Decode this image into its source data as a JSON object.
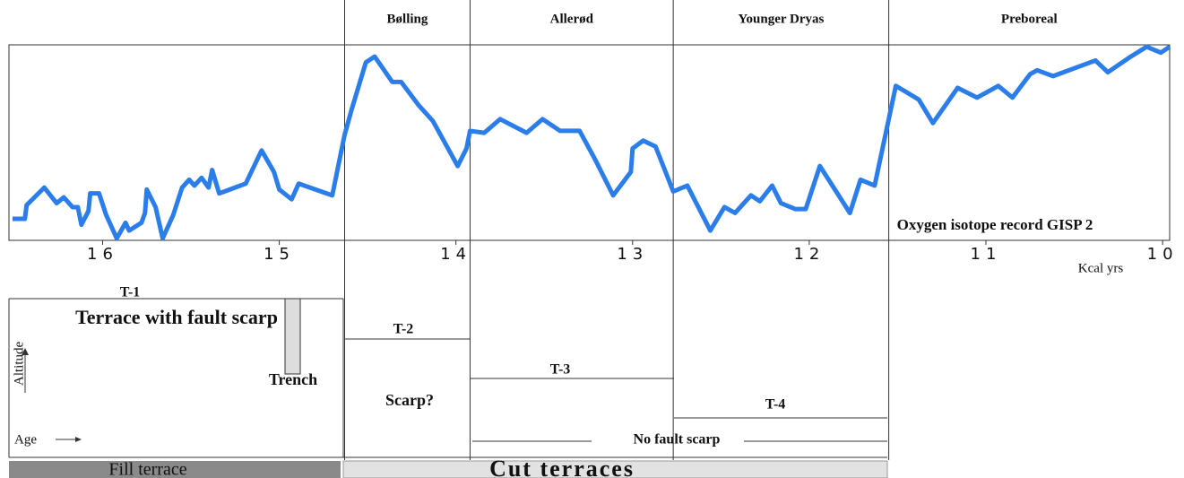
{
  "chart_data": {
    "type": "line",
    "annotation": "Oxygen isotope record GISP 2",
    "xlabel": "Kcal yrs",
    "xlim": [
      16.53,
      9.96
    ],
    "ylim": [
      0,
      100
    ],
    "xticks": [
      16,
      15,
      14,
      13,
      12,
      11,
      10
    ],
    "periods": [
      {
        "name": "Bølling",
        "start": 14.63
      },
      {
        "name": "Allerød",
        "start": 13.92
      },
      {
        "name": "Younger Dryas",
        "start": 12.77
      },
      {
        "name": "Preboreal",
        "start": 11.55
      }
    ],
    "x": [
      16.51,
      16.44,
      16.43,
      16.33,
      16.26,
      16.22,
      16.17,
      16.14,
      16.12,
      16.08,
      16.07,
      16.02,
      15.98,
      15.92,
      15.87,
      15.85,
      15.78,
      15.76,
      15.75,
      15.7,
      15.66,
      15.6,
      15.55,
      15.51,
      15.48,
      15.44,
      15.4,
      15.38,
      15.34,
      15.19,
      15.1,
      15.03,
      15.0,
      14.93,
      14.89,
      14.7,
      14.63,
      14.59,
      14.51,
      14.46,
      14.36,
      14.31,
      14.21,
      14.13,
      13.99,
      13.94,
      13.92,
      13.84,
      13.75,
      13.6,
      13.51,
      13.41,
      13.3,
      13.21,
      13.11,
      13.01,
      13.0,
      12.94,
      12.87,
      12.77,
      12.69,
      12.56,
      12.48,
      12.42,
      12.33,
      12.28,
      12.21,
      12.16,
      12.08,
      12.02,
      11.94,
      11.77,
      11.71,
      11.63,
      11.51,
      11.38,
      11.3,
      11.16,
      11.05,
      10.93,
      10.85,
      10.75,
      10.71,
      10.62,
      10.38,
      10.31,
      10.18,
      10.09,
      10.01,
      9.96
    ],
    "series": [
      {
        "color": "#2b7de9",
        "values": [
          11,
          11,
          18,
          27,
          19,
          22,
          17,
          17,
          8,
          15,
          24,
          24,
          13,
          1,
          9,
          5,
          9,
          14,
          26,
          17,
          1,
          13,
          27,
          31,
          28,
          32,
          27,
          36,
          24,
          29,
          46,
          35,
          26,
          21,
          29,
          23,
          54,
          67,
          91,
          94,
          81,
          81,
          69,
          61,
          38,
          47,
          56,
          55,
          62,
          55,
          62,
          56,
          56,
          41,
          23,
          35,
          47,
          51,
          48,
          25,
          28,
          5,
          17,
          14,
          23,
          20,
          28,
          19,
          16,
          16,
          38,
          14,
          31,
          28,
          79,
          72,
          60,
          78,
          73,
          79,
          73,
          85,
          87,
          84,
          92,
          86,
          94,
          99,
          96,
          99
        ]
      }
    ]
  },
  "diagram": {
    "t1": "T-1",
    "t1_text": "Terrace with fault scarp",
    "trench": "Trench",
    "altitude": "Altitude",
    "age": "Age",
    "t2": "T-2",
    "scarp": "Scarp?",
    "t3": "T-3",
    "t4": "T-4",
    "no_scarp": "No fault scarp",
    "fill": "Fill terrace",
    "cut": "Cut terraces"
  }
}
